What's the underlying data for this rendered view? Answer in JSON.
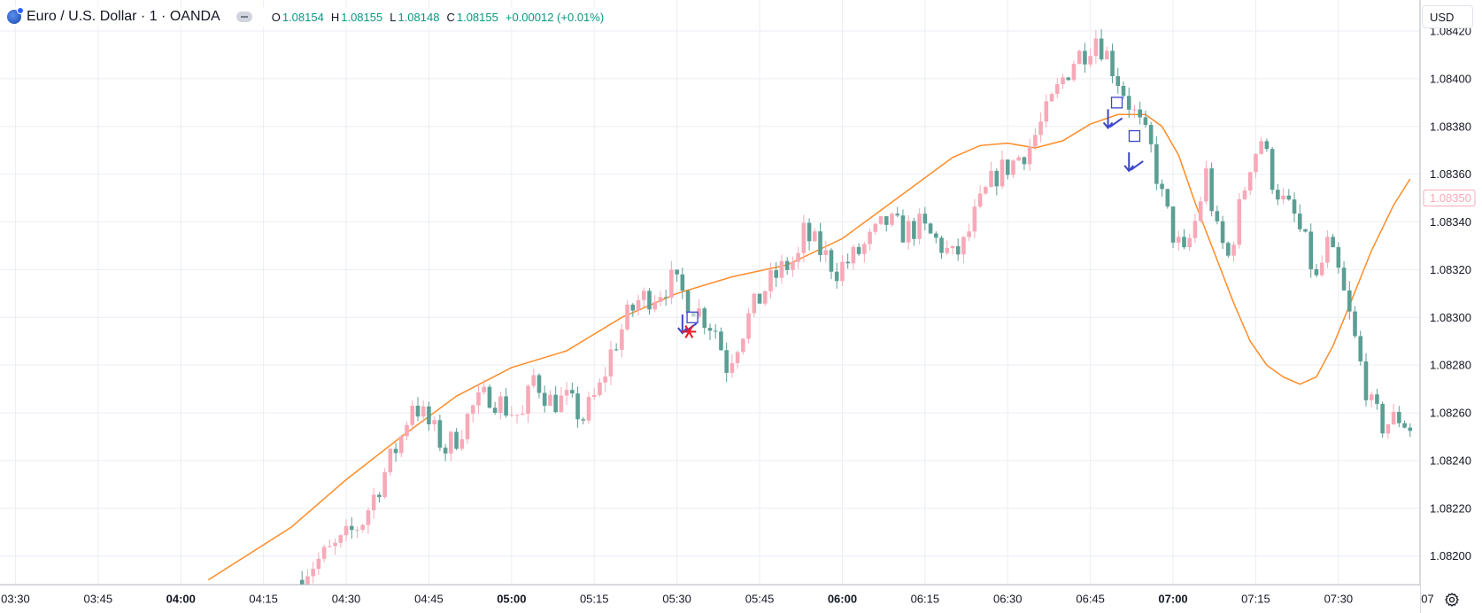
{
  "legend": {
    "symbol_title": "Euro / U.S. Dollar · 1 · OANDA",
    "o_label": "O",
    "o_value": "1.08154",
    "h_label": "H",
    "h_value": "1.08155",
    "l_label": "L",
    "l_value": "1.08148",
    "c_label": "C",
    "c_value": "1.08155",
    "change": "+0.00012 (+0.01%)"
  },
  "currency_button": "USD",
  "current_price_label": "1.08350",
  "colors": {
    "up": "#f7a9b8",
    "down": "#5b9e94",
    "ma_line": "#ff8c28",
    "grid": "#eaeef4",
    "marker": "#3c46c8",
    "star": "#e8202a",
    "axis_text": "#131722"
  },
  "icons": {
    "settings": "settings-icon",
    "logo": "oanda-logo-icon",
    "visibility": "eye-icon"
  },
  "chart_data": {
    "type": "candlestick",
    "title": "Euro / U.S. Dollar · 1 · OANDA",
    "y_ticks": [
      "1.08420",
      "1.08400",
      "1.08380",
      "1.08360",
      "1.08340",
      "1.08320",
      "1.08300",
      "1.08280",
      "1.08260",
      "1.08240",
      "1.08220",
      "1.08200"
    ],
    "y_range": [
      1.08188,
      1.08433
    ],
    "x_ticks": [
      {
        "label": "03:30",
        "bold": false,
        "minute": 0
      },
      {
        "label": "03:45",
        "bold": false,
        "minute": 15
      },
      {
        "label": "04:00",
        "bold": true,
        "minute": 30
      },
      {
        "label": "04:15",
        "bold": false,
        "minute": 45
      },
      {
        "label": "04:30",
        "bold": false,
        "minute": 60
      },
      {
        "label": "04:45",
        "bold": false,
        "minute": 75
      },
      {
        "label": "05:00",
        "bold": true,
        "minute": 90
      },
      {
        "label": "05:15",
        "bold": false,
        "minute": 105
      },
      {
        "label": "05:30",
        "bold": false,
        "minute": 120
      },
      {
        "label": "05:45",
        "bold": false,
        "minute": 135
      },
      {
        "label": "06:00",
        "bold": true,
        "minute": 150
      },
      {
        "label": "06:15",
        "bold": false,
        "minute": 165
      },
      {
        "label": "06:30",
        "bold": false,
        "minute": 180
      },
      {
        "label": "06:45",
        "bold": false,
        "minute": 195
      },
      {
        "label": "07:00",
        "bold": true,
        "minute": 210
      },
      {
        "label": "07:15",
        "bold": false,
        "minute": 225
      },
      {
        "label": "07:30",
        "bold": false,
        "minute": 240
      },
      {
        "label": "07",
        "bold": false,
        "minute": 255
      }
    ],
    "x_range_minutes": [
      -2.8,
      254.8
    ],
    "series_close_anchors": [
      [
        52,
        1.0819
      ],
      [
        53,
        1.08195
      ],
      [
        56,
        1.082
      ],
      [
        59,
        1.08205
      ],
      [
        63,
        1.08215
      ],
      [
        66,
        1.0823
      ],
      [
        68,
        1.0824
      ],
      [
        70,
        1.0825
      ],
      [
        72,
        1.08265
      ],
      [
        75,
        1.08255
      ],
      [
        78,
        1.08245
      ],
      [
        80,
        1.0825
      ],
      [
        83,
        1.08262
      ],
      [
        86,
        1.08268
      ],
      [
        89,
        1.08262
      ],
      [
        92,
        1.08258
      ],
      [
        94,
        1.08275
      ],
      [
        97,
        1.08265
      ],
      [
        100,
        1.08265
      ],
      [
        103,
        1.08258
      ],
      [
        106,
        1.0827
      ],
      [
        108,
        1.08285
      ],
      [
        111,
        1.083
      ],
      [
        113,
        1.08307
      ],
      [
        116,
        1.0831
      ],
      [
        119,
        1.08315
      ],
      [
        121,
        1.0831
      ],
      [
        123,
        1.08305
      ],
      [
        125,
        1.083
      ],
      [
        127,
        1.08295
      ],
      [
        129,
        1.0828
      ],
      [
        130,
        1.08285
      ],
      [
        133,
        1.083
      ],
      [
        136,
        1.08312
      ],
      [
        139,
        1.0832
      ],
      [
        142,
        1.08325
      ],
      [
        143,
        1.08335
      ],
      [
        146,
        1.08328
      ],
      [
        149,
        1.0832
      ],
      [
        152,
        1.08325
      ],
      [
        155,
        1.08332
      ],
      [
        158,
        1.0834
      ],
      [
        161,
        1.08336
      ],
      [
        164,
        1.08338
      ],
      [
        168,
        1.0833
      ],
      [
        170,
        1.08325
      ],
      [
        172,
        1.0833
      ],
      [
        174,
        1.08342
      ],
      [
        176,
        1.08352
      ],
      [
        178,
        1.0836
      ],
      [
        181,
        1.08365
      ],
      [
        184,
        1.08372
      ],
      [
        187,
        1.08385
      ],
      [
        190,
        1.084
      ],
      [
        192,
        1.08408
      ],
      [
        194,
        1.08412
      ],
      [
        196,
        1.08418
      ],
      [
        198,
        1.0841
      ],
      [
        200,
        1.084
      ],
      [
        202,
        1.0839
      ],
      [
        204,
        1.0838
      ],
      [
        206,
        1.0837
      ],
      [
        208,
        1.0835
      ],
      [
        210,
        1.08335
      ],
      [
        212,
        1.08325
      ],
      [
        214,
        1.0834
      ],
      [
        216,
        1.0836
      ],
      [
        218,
        1.08335
      ],
      [
        220,
        1.08325
      ],
      [
        222,
        1.08345
      ],
      [
        224,
        1.08365
      ],
      [
        226,
        1.08375
      ],
      [
        228,
        1.08358
      ],
      [
        230,
        1.08348
      ],
      [
        232,
        1.08342
      ],
      [
        234,
        1.0833
      ],
      [
        236,
        1.08315
      ],
      [
        238,
        1.0833
      ],
      [
        240,
        1.08318
      ],
      [
        242,
        1.083
      ],
      [
        244,
        1.0828
      ],
      [
        246,
        1.08262
      ],
      [
        248,
        1.08255
      ],
      [
        251,
        1.08258
      ],
      [
        253,
        1.08254
      ]
    ],
    "moving_average": [
      [
        35,
        1.0819
      ],
      [
        50,
        1.08212
      ],
      [
        60,
        1.08232
      ],
      [
        70,
        1.0825
      ],
      [
        80,
        1.08267
      ],
      [
        90,
        1.08279
      ],
      [
        100,
        1.08286
      ],
      [
        110,
        1.083
      ],
      [
        120,
        1.0831
      ],
      [
        130,
        1.08317
      ],
      [
        140,
        1.08322
      ],
      [
        150,
        1.08333
      ],
      [
        160,
        1.0835
      ],
      [
        170,
        1.08367
      ],
      [
        175,
        1.08372
      ],
      [
        180,
        1.08373
      ],
      [
        185,
        1.08371
      ],
      [
        190,
        1.08374
      ],
      [
        195,
        1.08381
      ],
      [
        200,
        1.08385
      ],
      [
        205,
        1.08385
      ],
      [
        208,
        1.0838
      ],
      [
        211,
        1.08368
      ],
      [
        214,
        1.08348
      ],
      [
        216,
        1.08336
      ],
      [
        218,
        1.08324
      ],
      [
        221,
        1.08306
      ],
      [
        224,
        1.0829
      ],
      [
        227,
        1.0828
      ],
      [
        230,
        1.08275
      ],
      [
        233,
        1.08272
      ],
      [
        236,
        1.08275
      ],
      [
        239,
        1.08288
      ],
      [
        242,
        1.08305
      ],
      [
        246,
        1.08328
      ],
      [
        250,
        1.08347
      ],
      [
        253,
        1.08358
      ]
    ],
    "markers": [
      {
        "type": "arrow",
        "minute": 121.0,
        "price": 1.08296
      },
      {
        "type": "square",
        "minute": 122.8,
        "price": 1.083
      },
      {
        "type": "star",
        "minute": 122.2,
        "price": 1.08294
      },
      {
        "type": "arrow",
        "minute": 198.2,
        "price": 1.08382
      },
      {
        "type": "square",
        "minute": 199.8,
        "price": 1.0839
      },
      {
        "type": "arrow",
        "minute": 202.0,
        "price": 1.08364
      },
      {
        "type": "square",
        "minute": 203.0,
        "price": 1.08376
      }
    ],
    "grid": true
  }
}
